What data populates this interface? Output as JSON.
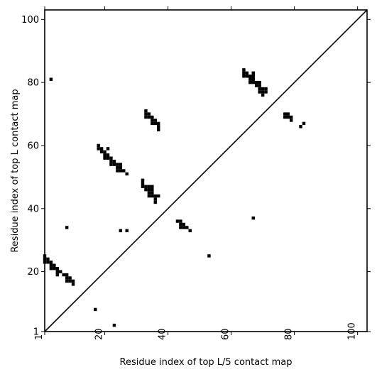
{
  "chart_data": {
    "type": "heatmap",
    "xlabel": "Residue index of top L/5 contact map",
    "ylabel": "Residue index of top L contact map",
    "xlim": [
      1,
      103
    ],
    "ylim": [
      1,
      103
    ],
    "xticks": [
      1,
      20,
      40,
      60,
      80,
      100
    ],
    "yticks": [
      1,
      20,
      40,
      60,
      80,
      100
    ],
    "x_tick_labels": [
      "1",
      "20",
      "40",
      "60",
      "80",
      "100"
    ],
    "y_tick_labels": [
      "1",
      "20",
      "40",
      "60",
      "80",
      "100"
    ],
    "x_tick_rotation_deg": -90,
    "diagonal": true,
    "grid": false,
    "cell_color": "#000000",
    "background_color": "#ffffff",
    "upper_triangle_contacts_top_L5": [
      [
        64,
        84
      ],
      [
        64,
        83
      ],
      [
        64,
        82
      ],
      [
        65,
        83
      ],
      [
        65,
        82
      ],
      [
        66,
        82
      ],
      [
        66,
        81
      ],
      [
        66,
        80
      ],
      [
        67,
        83
      ],
      [
        67,
        82
      ],
      [
        67,
        81
      ],
      [
        67,
        80
      ],
      [
        68,
        80
      ],
      [
        68,
        79
      ],
      [
        69,
        80
      ],
      [
        69,
        79
      ],
      [
        69,
        78
      ],
      [
        69,
        77
      ],
      [
        70,
        78
      ],
      [
        70,
        77
      ],
      [
        70,
        76
      ],
      [
        71,
        78
      ],
      [
        71,
        77
      ],
      [
        77,
        70
      ],
      [
        77,
        69
      ],
      [
        78,
        70
      ],
      [
        78,
        69
      ],
      [
        79,
        69
      ],
      [
        79,
        68
      ],
      [
        82,
        66
      ],
      [
        83,
        67
      ]
    ],
    "lower_triangle_contacts_top_L": [
      [
        3,
        81
      ],
      [
        33,
        71
      ],
      [
        33,
        70
      ],
      [
        33,
        69
      ],
      [
        34,
        70
      ],
      [
        34,
        69
      ],
      [
        35,
        69
      ],
      [
        35,
        68
      ],
      [
        35,
        67
      ],
      [
        36,
        68
      ],
      [
        36,
        67
      ],
      [
        37,
        67
      ],
      [
        37,
        66
      ],
      [
        37,
        65
      ],
      [
        18,
        60
      ],
      [
        18,
        59
      ],
      [
        19,
        59
      ],
      [
        19,
        58
      ],
      [
        20,
        58
      ],
      [
        20,
        57
      ],
      [
        20,
        56
      ],
      [
        21,
        59
      ],
      [
        21,
        57
      ],
      [
        21,
        56
      ],
      [
        22,
        56
      ],
      [
        22,
        55
      ],
      [
        22,
        54
      ],
      [
        23,
        55
      ],
      [
        23,
        54
      ],
      [
        24,
        54
      ],
      [
        24,
        53
      ],
      [
        24,
        52
      ],
      [
        25,
        54
      ],
      [
        25,
        53
      ],
      [
        25,
        52
      ],
      [
        26,
        52
      ],
      [
        27,
        51
      ],
      [
        32,
        49
      ],
      [
        32,
        48
      ],
      [
        32,
        47
      ],
      [
        33,
        47
      ],
      [
        33,
        46
      ],
      [
        34,
        47
      ],
      [
        34,
        46
      ],
      [
        34,
        45
      ],
      [
        34,
        44
      ],
      [
        35,
        47
      ],
      [
        35,
        46
      ],
      [
        35,
        45
      ],
      [
        35,
        44
      ],
      [
        36,
        44
      ],
      [
        36,
        43
      ],
      [
        36,
        42
      ],
      [
        37,
        44
      ],
      [
        43,
        36
      ],
      [
        44,
        36
      ],
      [
        44,
        35
      ],
      [
        44,
        34
      ],
      [
        45,
        35
      ],
      [
        45,
        34
      ],
      [
        46,
        34
      ],
      [
        47,
        33
      ],
      [
        25,
        33
      ],
      [
        27,
        33
      ],
      [
        67,
        37
      ],
      [
        53,
        25
      ],
      [
        1,
        25
      ],
      [
        1,
        24
      ],
      [
        1,
        23
      ],
      [
        2,
        24
      ],
      [
        2,
        23
      ],
      [
        3,
        23
      ],
      [
        3,
        22
      ],
      [
        3,
        21
      ],
      [
        4,
        22
      ],
      [
        4,
        21
      ],
      [
        5,
        21
      ],
      [
        5,
        20
      ],
      [
        5,
        19
      ],
      [
        6,
        20
      ],
      [
        7,
        19
      ],
      [
        8,
        19
      ],
      [
        8,
        18
      ],
      [
        8,
        17
      ],
      [
        9,
        18
      ],
      [
        9,
        17
      ],
      [
        10,
        17
      ],
      [
        10,
        16
      ],
      [
        8,
        34
      ],
      [
        17,
        8
      ],
      [
        23,
        3
      ]
    ]
  }
}
